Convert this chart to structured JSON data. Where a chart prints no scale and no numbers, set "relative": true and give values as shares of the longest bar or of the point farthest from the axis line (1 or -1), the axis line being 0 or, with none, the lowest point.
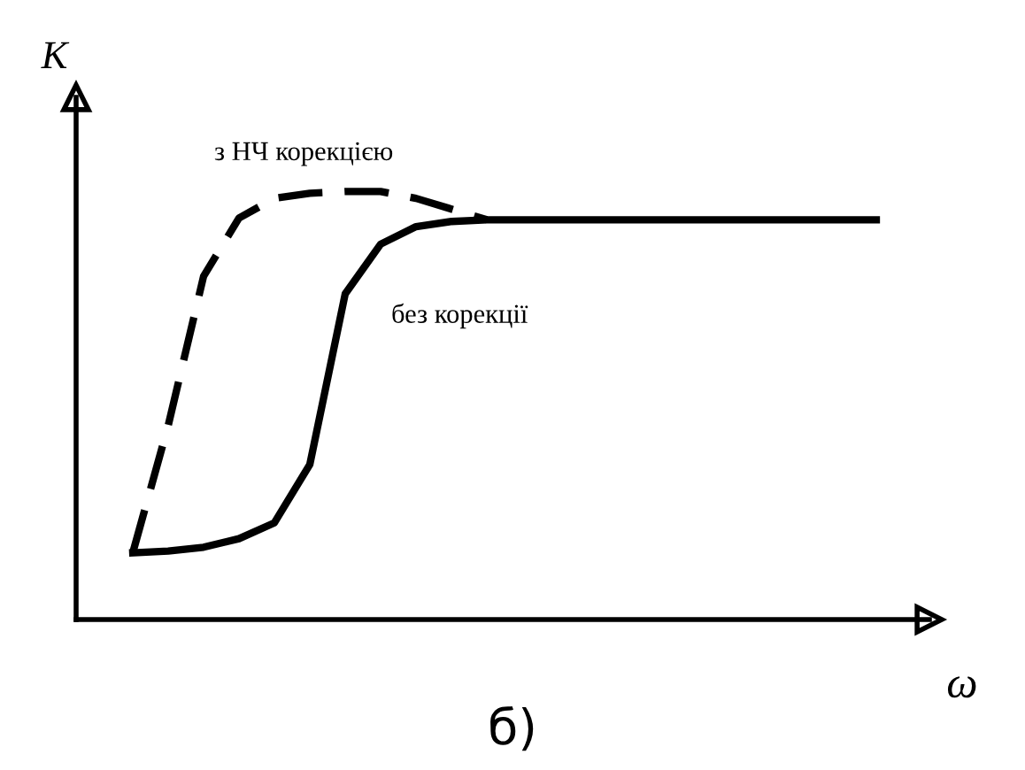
{
  "chart_data": {
    "type": "line",
    "relative": true,
    "xlabel": "ω",
    "ylabel": "K",
    "categories": [
      null,
      null,
      null,
      null,
      null,
      null,
      null,
      null,
      null,
      null,
      null,
      null,
      null,
      null,
      null,
      null,
      null,
      null,
      null,
      null,
      null,
      null
    ],
    "series": [
      {
        "name": "з НЧ корекцією",
        "color": "#000000",
        "line_style": "dashed",
        "values": [
          0.156,
          0.453,
          0.802,
          0.938,
          0.984,
          0.996,
          1,
          1,
          0.984,
          0.959,
          0.934,
          null,
          null,
          null,
          null,
          null,
          null,
          null,
          null,
          null,
          null,
          null
        ]
      },
      {
        "name": "без корекції",
        "color": "#000000",
        "line_style": "solid",
        "values": [
          0.156,
          0.16,
          0.169,
          0.189,
          0.226,
          0.362,
          0.761,
          0.877,
          0.918,
          0.93,
          0.934,
          0.934,
          0.934,
          0.934,
          0.934,
          0.934,
          0.934,
          0.934,
          0.934,
          0.934,
          0.934,
          0.934
        ]
      }
    ],
    "annotations": [
      "б)"
    ],
    "grid": false,
    "legend": false,
    "marker": "none"
  }
}
